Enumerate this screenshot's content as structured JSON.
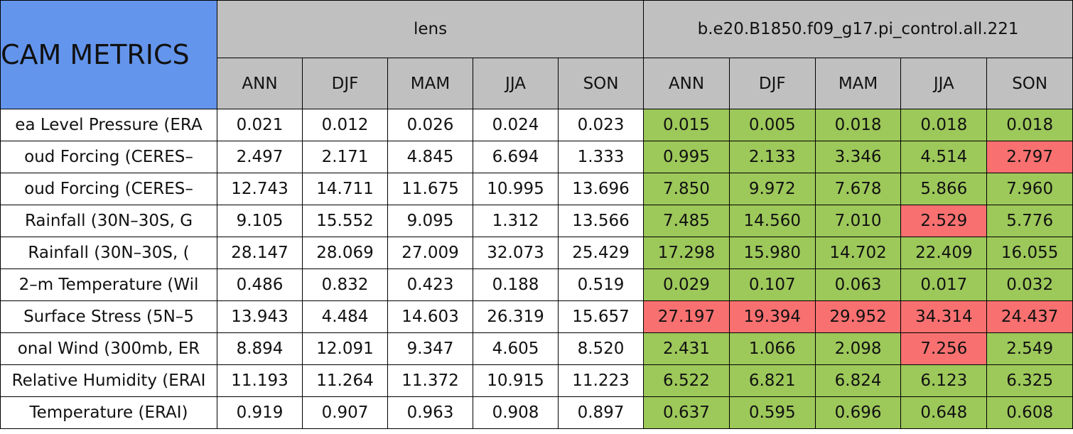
{
  "header": {
    "title": "CAM METRICS",
    "groups": [
      "lens",
      "b.e20.B1850.f09_g17.pi_control.all.221"
    ],
    "seasons": [
      "ANN",
      "DJF",
      "MAM",
      "JJA",
      "SON",
      "ANN",
      "DJF",
      "MAM",
      "JJA",
      "SON"
    ]
  },
  "table": {
    "rows": [
      {
        "label": "ea Level Pressure (ERA",
        "values": [
          "0.021",
          "0.012",
          "0.026",
          "0.024",
          "0.023",
          "0.015",
          "0.005",
          "0.018",
          "0.018",
          "0.018"
        ],
        "colors": [
          "#ffffff",
          "#ffffff",
          "#ffffff",
          "#ffffff",
          "#ffffff",
          "#9dc85a",
          "#9dc85a",
          "#9dc85a",
          "#9dc85a",
          "#9dc85a"
        ]
      },
      {
        "label": "oud Forcing (CERES–",
        "values": [
          "2.497",
          "2.171",
          "4.845",
          "6.694",
          "1.333",
          "0.995",
          "2.133",
          "3.346",
          "4.514",
          "2.797"
        ],
        "colors": [
          "#ffffff",
          "#ffffff",
          "#ffffff",
          "#ffffff",
          "#ffffff",
          "#9dc85a",
          "#9dc85a",
          "#9dc85a",
          "#9dc85a",
          "#f87070"
        ]
      },
      {
        "label": "oud Forcing (CERES–",
        "values": [
          "12.743",
          "14.711",
          "11.675",
          "10.995",
          "13.696",
          "7.850",
          "9.972",
          "7.678",
          "5.866",
          "7.960"
        ],
        "colors": [
          "#ffffff",
          "#ffffff",
          "#ffffff",
          "#ffffff",
          "#ffffff",
          "#9dc85a",
          "#9dc85a",
          "#9dc85a",
          "#9dc85a",
          "#9dc85a"
        ]
      },
      {
        "label": "Rainfall (30N–30S, G",
        "values": [
          "9.105",
          "15.552",
          "9.095",
          "1.312",
          "13.566",
          "7.485",
          "14.560",
          "7.010",
          "2.529",
          "5.776"
        ],
        "colors": [
          "#ffffff",
          "#ffffff",
          "#ffffff",
          "#ffffff",
          "#ffffff",
          "#9dc85a",
          "#9dc85a",
          "#9dc85a",
          "#f87070",
          "#9dc85a"
        ]
      },
      {
        "label": "Rainfall (30N–30S, (",
        "values": [
          "28.147",
          "28.069",
          "27.009",
          "32.073",
          "25.429",
          "17.298",
          "15.980",
          "14.702",
          "22.409",
          "16.055"
        ],
        "colors": [
          "#ffffff",
          "#ffffff",
          "#ffffff",
          "#ffffff",
          "#ffffff",
          "#9dc85a",
          "#9dc85a",
          "#9dc85a",
          "#9dc85a",
          "#9dc85a"
        ]
      },
      {
        "label": "2–m Temperature (Wil",
        "values": [
          "0.486",
          "0.832",
          "0.423",
          "0.188",
          "0.519",
          "0.029",
          "0.107",
          "0.063",
          "0.017",
          "0.032"
        ],
        "colors": [
          "#ffffff",
          "#ffffff",
          "#ffffff",
          "#ffffff",
          "#ffffff",
          "#9dc85a",
          "#9dc85a",
          "#9dc85a",
          "#9dc85a",
          "#9dc85a"
        ]
      },
      {
        "label": "Surface Stress (5N–5",
        "values": [
          "13.943",
          "4.484",
          "14.603",
          "26.319",
          "15.657",
          "27.197",
          "19.394",
          "29.952",
          "34.314",
          "24.437"
        ],
        "colors": [
          "#ffffff",
          "#ffffff",
          "#ffffff",
          "#ffffff",
          "#ffffff",
          "#f87070",
          "#f87070",
          "#f87070",
          "#f87070",
          "#f87070"
        ]
      },
      {
        "label": "onal Wind (300mb, ER",
        "values": [
          "8.894",
          "12.091",
          "9.347",
          "4.605",
          "8.520",
          "2.431",
          "1.066",
          "2.098",
          "7.256",
          "2.549"
        ],
        "colors": [
          "#ffffff",
          "#ffffff",
          "#ffffff",
          "#ffffff",
          "#ffffff",
          "#9dc85a",
          "#9dc85a",
          "#9dc85a",
          "#f87070",
          "#9dc85a"
        ]
      },
      {
        "label": "Relative Humidity (ERAI",
        "values": [
          "11.193",
          "11.264",
          "11.372",
          "10.915",
          "11.223",
          "6.522",
          "6.821",
          "6.824",
          "6.123",
          "6.325"
        ],
        "colors": [
          "#ffffff",
          "#ffffff",
          "#ffffff",
          "#ffffff",
          "#ffffff",
          "#9dc85a",
          "#9dc85a",
          "#9dc85a",
          "#9dc85a",
          "#9dc85a"
        ]
      },
      {
        "label": "Temperature (ERAI)",
        "values": [
          "0.919",
          "0.907",
          "0.963",
          "0.908",
          "0.897",
          "0.637",
          "0.595",
          "0.696",
          "0.648",
          "0.608"
        ],
        "colors": [
          "#ffffff",
          "#ffffff",
          "#ffffff",
          "#ffffff",
          "#ffffff",
          "#9dc85a",
          "#9dc85a",
          "#9dc85a",
          "#9dc85a",
          "#9dc85a"
        ]
      }
    ]
  }
}
